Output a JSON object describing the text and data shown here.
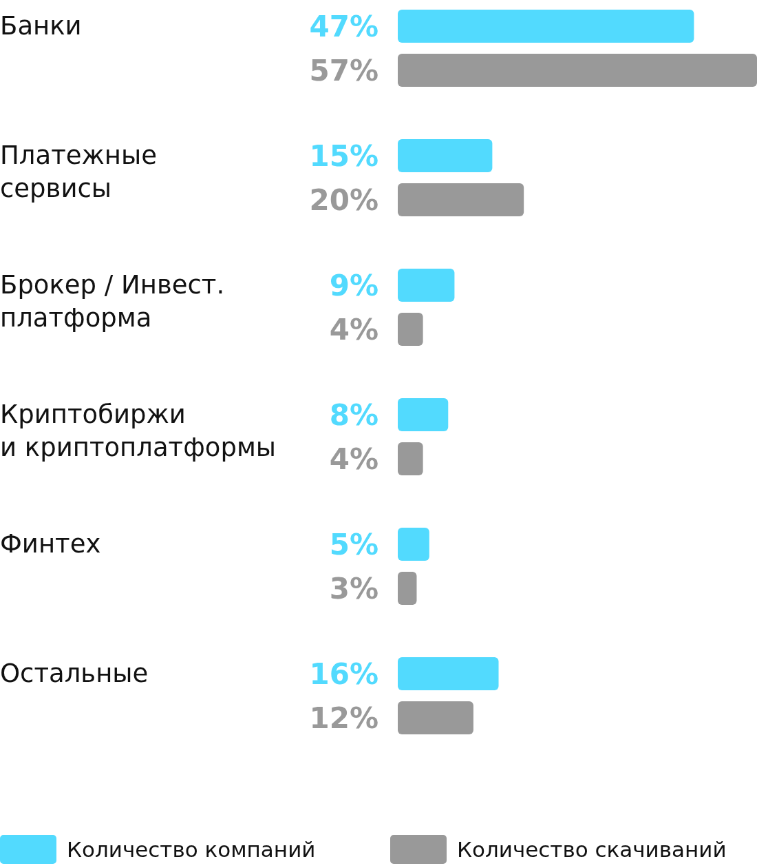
{
  "chart_data": {
    "type": "bar",
    "orientation": "horizontal",
    "categories": [
      "Банки",
      "Платежные\nсервисы",
      "Брокер / Инвест.\nплатформа",
      "Криптобиржи\nи криптоплатформы",
      "Финтех",
      "Остальные"
    ],
    "series": [
      {
        "name": "Количество компаний",
        "color": "#52dafe",
        "values": [
          47,
          15,
          9,
          8,
          5,
          16
        ],
        "value_labels": [
          "47%",
          "15%",
          "9%",
          "8%",
          "5%",
          "16%"
        ]
      },
      {
        "name": "Количество скачиваний",
        "color": "#999999",
        "values": [
          57,
          20,
          4,
          4,
          3,
          12
        ],
        "value_labels": [
          "57%",
          "20%",
          "4%",
          "4%",
          "3%",
          "12%"
        ]
      }
    ],
    "legend": "bottom"
  }
}
